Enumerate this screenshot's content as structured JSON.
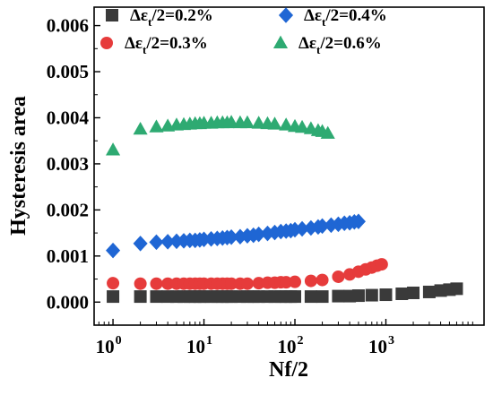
{
  "chart_data": {
    "type": "scatter",
    "xscale": "log",
    "xlim": [
      0.62,
      12000
    ],
    "ylim": [
      -0.0005,
      0.0064
    ],
    "xlabel": "Nf/2",
    "ylabel": "Hysteresis area",
    "x_ticks": [
      {
        "value": 1,
        "base": "10",
        "exp": "0"
      },
      {
        "value": 10,
        "base": "10",
        "exp": "1"
      },
      {
        "value": 100,
        "base": "10",
        "exp": "2"
      },
      {
        "value": 1000,
        "base": "10",
        "exp": "3"
      }
    ],
    "y_ticks": [
      {
        "value": 0.0,
        "label": "0.000"
      },
      {
        "value": 0.001,
        "label": "0.001"
      },
      {
        "value": 0.002,
        "label": "0.002"
      },
      {
        "value": 0.003,
        "label": "0.003"
      },
      {
        "value": 0.004,
        "label": "0.004"
      },
      {
        "value": 0.005,
        "label": "0.005"
      },
      {
        "value": 0.006,
        "label": "0.006"
      }
    ],
    "legend_placement": "top",
    "series": [
      {
        "name": "Δεt/2=0.2%",
        "legend": {
          "pre": "Δε",
          "sub": "t",
          "post": "/2=0.2%"
        },
        "marker": "square",
        "color": "#3a3a3a",
        "x": [
          1,
          2,
          3,
          4,
          5,
          6,
          7,
          8,
          9,
          10,
          12,
          14,
          16,
          18,
          20,
          25,
          30,
          35,
          40,
          50,
          60,
          70,
          80,
          90,
          100,
          150,
          200,
          300,
          400,
          500,
          700,
          1000,
          1500,
          2000,
          3000,
          4000,
          5000,
          6000
        ],
        "y": [
          0.00012,
          0.00012,
          0.00012,
          0.00012,
          0.00012,
          0.00012,
          0.00012,
          0.00012,
          0.00012,
          0.00012,
          0.00012,
          0.00012,
          0.00012,
          0.00012,
          0.00012,
          0.00012,
          0.00012,
          0.00012,
          0.00012,
          0.00012,
          0.00012,
          0.00012,
          0.00012,
          0.00012,
          0.00012,
          0.00012,
          0.00012,
          0.00013,
          0.00013,
          0.00014,
          0.00015,
          0.00016,
          0.00018,
          0.0002,
          0.00022,
          0.00025,
          0.00027,
          0.00029
        ]
      },
      {
        "name": "Δεt/2=0.3%",
        "legend": {
          "pre": "Δε",
          "sub": "t",
          "post": "/2=0.3%"
        },
        "marker": "circle",
        "color": "#e63b3b",
        "x": [
          1,
          2,
          3,
          4,
          5,
          6,
          7,
          8,
          9,
          10,
          12,
          14,
          16,
          18,
          20,
          25,
          30,
          40,
          50,
          60,
          70,
          80,
          100,
          150,
          200,
          300,
          400,
          500,
          600,
          700,
          800,
          900
        ],
        "y": [
          0.00041,
          0.0004,
          0.0004,
          0.0004,
          0.0004,
          0.0004,
          0.0004,
          0.0004,
          0.0004,
          0.0004,
          0.0004,
          0.0004,
          0.0004,
          0.0004,
          0.0004,
          0.0004,
          0.0004,
          0.00041,
          0.00042,
          0.00042,
          0.00043,
          0.00043,
          0.00044,
          0.00046,
          0.00048,
          0.00055,
          0.0006,
          0.00066,
          0.00071,
          0.00075,
          0.00079,
          0.00082
        ]
      },
      {
        "name": "Δεt/2=0.4%",
        "legend": {
          "pre": "Δε",
          "sub": "t",
          "post": "/2=0.4%"
        },
        "marker": "diamond",
        "color": "#1f66d4",
        "x": [
          1,
          2,
          3,
          4,
          5,
          6,
          7,
          8,
          9,
          10,
          12,
          14,
          16,
          18,
          20,
          25,
          30,
          35,
          40,
          50,
          60,
          70,
          80,
          90,
          100,
          120,
          150,
          180,
          200,
          250,
          300,
          350,
          400,
          450,
          500
        ],
        "y": [
          0.00112,
          0.00127,
          0.0013,
          0.00131,
          0.00132,
          0.00133,
          0.00134,
          0.00134,
          0.00135,
          0.00136,
          0.00137,
          0.00138,
          0.00139,
          0.0014,
          0.00141,
          0.00142,
          0.00144,
          0.00145,
          0.00147,
          0.00149,
          0.00151,
          0.00153,
          0.00154,
          0.00155,
          0.00157,
          0.00159,
          0.00161,
          0.00163,
          0.00165,
          0.00167,
          0.00169,
          0.00171,
          0.00172,
          0.00174,
          0.00175
        ]
      },
      {
        "name": "Δεt/2=0.6%",
        "legend": {
          "pre": "Δε",
          "sub": "t",
          "post": "/2=0.6%"
        },
        "marker": "triangle",
        "color": "#2eaa72",
        "x": [
          1,
          2,
          3,
          4,
          5,
          6,
          7,
          8,
          9,
          10,
          12,
          14,
          16,
          18,
          20,
          25,
          30,
          40,
          50,
          60,
          80,
          100,
          120,
          150,
          180,
          200,
          230
        ],
        "y": [
          0.0033,
          0.00375,
          0.0038,
          0.00382,
          0.00384,
          0.00385,
          0.00386,
          0.00387,
          0.00387,
          0.00388,
          0.00388,
          0.00389,
          0.00389,
          0.00389,
          0.0039,
          0.00389,
          0.00389,
          0.00388,
          0.00387,
          0.00386,
          0.00384,
          0.00381,
          0.00379,
          0.00376,
          0.00372,
          0.0037,
          0.00366
        ]
      }
    ]
  }
}
